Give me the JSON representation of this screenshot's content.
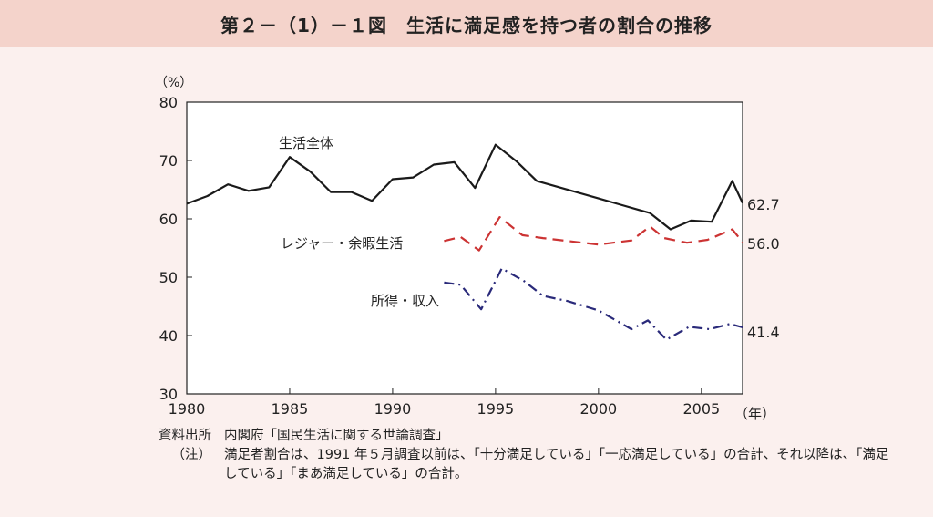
{
  "header": {
    "title": "第２－（1）－１図　生活に満足感を持つ者の割合の推移"
  },
  "chart_data": {
    "type": "line",
    "ylabel": "（%）",
    "xlabel": "（年）",
    "xlim": [
      1980,
      2007
    ],
    "ylim": [
      30,
      80
    ],
    "x_ticks": [
      1980,
      1985,
      1990,
      1995,
      2000,
      2005
    ],
    "y_ticks": [
      30,
      40,
      50,
      60,
      70,
      80
    ],
    "grid": false,
    "series": [
      {
        "name": "生活全体",
        "style": "solid",
        "color": "#1a1a1a",
        "end_label": "62.7",
        "points": [
          [
            1980,
            62.6
          ],
          [
            1981,
            63.9
          ],
          [
            1982,
            65.9
          ],
          [
            1983,
            64.8
          ],
          [
            1984,
            65.4
          ],
          [
            1985,
            70.6
          ],
          [
            1986,
            68.1
          ],
          [
            1987,
            64.6
          ],
          [
            1988,
            64.6
          ],
          [
            1989,
            63.1
          ],
          [
            1990,
            66.8
          ],
          [
            1991,
            67.1
          ],
          [
            1992,
            69.3
          ],
          [
            1993,
            69.7
          ],
          [
            1994,
            65.3
          ],
          [
            1995,
            72.7
          ],
          [
            1996,
            69.9
          ],
          [
            1997,
            66.5
          ],
          [
            1998,
            65.5
          ],
          [
            1999,
            64.5
          ],
          [
            2000,
            63.5
          ],
          [
            2001,
            62.5
          ],
          [
            2002,
            61.5
          ],
          [
            2002.5,
            61.0
          ],
          [
            2003.5,
            58.2
          ],
          [
            2004.5,
            59.7
          ],
          [
            2005.5,
            59.5
          ],
          [
            2006.5,
            66.5
          ],
          [
            2007,
            62.7
          ]
        ]
      },
      {
        "name": "レジャー・余暇生活",
        "style": "dashed",
        "color": "#cc3333",
        "end_label": "56.0",
        "points": [
          [
            1992.5,
            56.2
          ],
          [
            1993.3,
            56.9
          ],
          [
            1994.2,
            54.6
          ],
          [
            1995.2,
            60.3
          ],
          [
            1996.3,
            57.2
          ],
          [
            1997.3,
            56.7
          ],
          [
            1998.5,
            56.2
          ],
          [
            2000,
            55.6
          ],
          [
            2001.6,
            56.3
          ],
          [
            2002.5,
            58.7
          ],
          [
            2003.2,
            56.7
          ],
          [
            2004.3,
            55.9
          ],
          [
            2005.3,
            56.4
          ],
          [
            2006.5,
            58.2
          ],
          [
            2007,
            56.0
          ]
        ]
      },
      {
        "name": "所得・収入",
        "style": "dashdot",
        "color": "#2a2a7a",
        "end_label": "41.4",
        "points": [
          [
            1992.5,
            49.1
          ],
          [
            1993.3,
            48.7
          ],
          [
            1994.3,
            44.5
          ],
          [
            1995.3,
            51.5
          ],
          [
            1996.4,
            49.3
          ],
          [
            1997.3,
            46.8
          ],
          [
            1998.5,
            45.9
          ],
          [
            2000,
            44.3
          ],
          [
            2001.6,
            41.1
          ],
          [
            2002.4,
            42.6
          ],
          [
            2003.3,
            39.3
          ],
          [
            2004.4,
            41.5
          ],
          [
            2005.4,
            41.1
          ],
          [
            2006.4,
            42.0
          ],
          [
            2007,
            41.4
          ]
        ]
      }
    ]
  },
  "notes": {
    "source_label": "資料出所",
    "source_text": "内閣府「国民生活に関する世論調査」",
    "note_label": "（注）",
    "note_text": "満足者割合は、1991 年５月調査以前は、「十分満足している」「一応満足している」の合計、それ以降は、「満足している」「まあ満足している」の合計。"
  }
}
